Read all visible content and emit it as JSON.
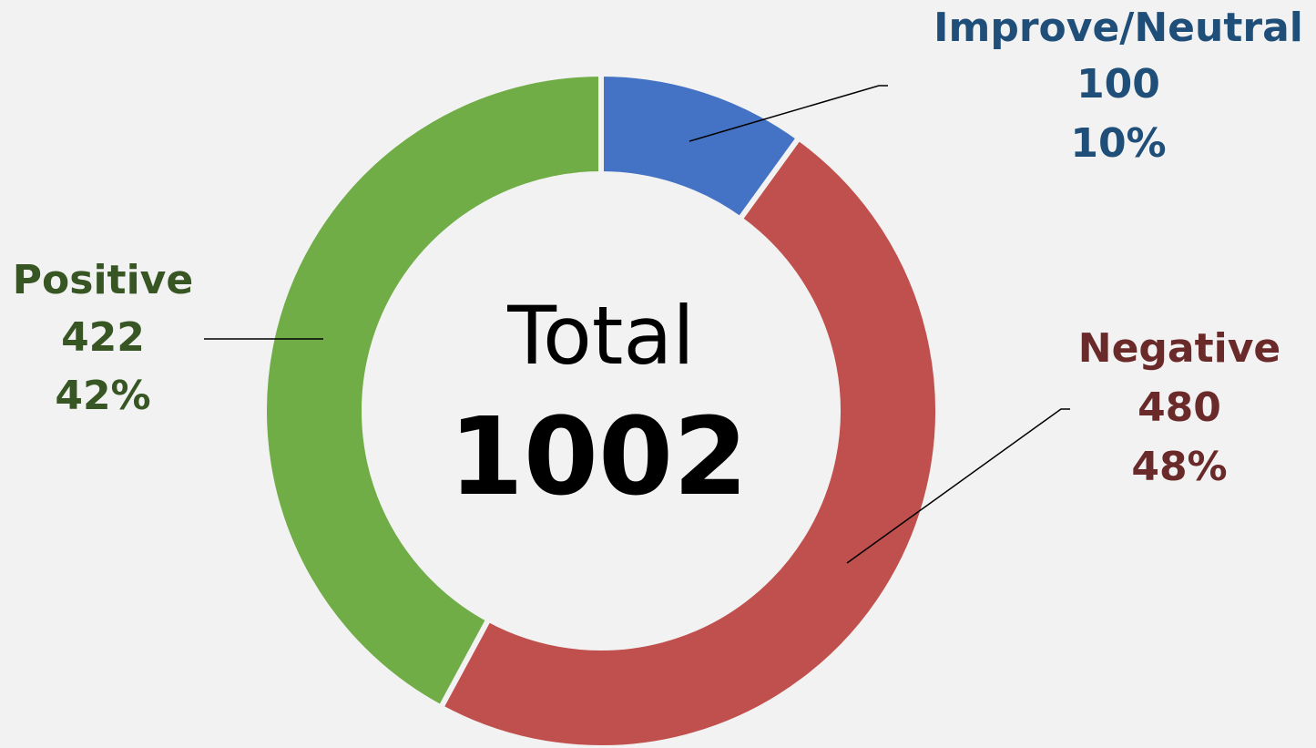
{
  "chart_data": {
    "type": "donut",
    "categories": [
      "Improve/Neutral",
      "Negative",
      "Positive"
    ],
    "values": [
      100,
      480,
      422
    ],
    "percent_labels": [
      "10%",
      "48%",
      "42%"
    ],
    "colors": [
      "#4472c4",
      "#c0504d",
      "#70ad47"
    ],
    "label_colors": [
      "#1f4e79",
      "#6b2a2a",
      "#375623"
    ],
    "center_label": "Total",
    "total": 1002
  }
}
